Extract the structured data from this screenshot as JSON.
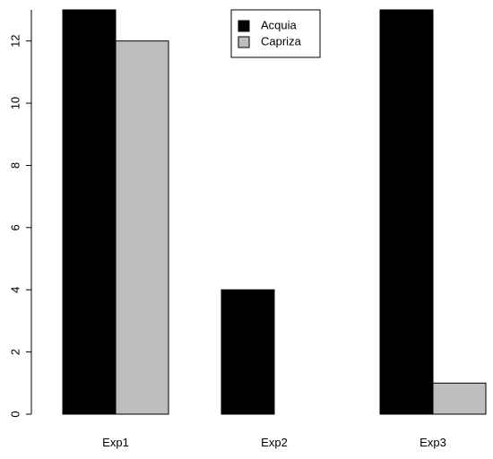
{
  "chart_data": {
    "type": "bar",
    "categories": [
      "Exp1",
      "Exp2",
      "Exp3"
    ],
    "series": [
      {
        "name": "Acquia",
        "color": "#000000",
        "values": [
          13,
          4,
          13
        ]
      },
      {
        "name": "Capriza",
        "color": "#bebebe",
        "values": [
          12,
          0,
          1
        ]
      }
    ],
    "y_ticks": [
      0,
      2,
      4,
      6,
      8,
      10,
      12
    ],
    "ylim": [
      0,
      13
    ],
    "grid": false,
    "legend_position": "top-center"
  }
}
